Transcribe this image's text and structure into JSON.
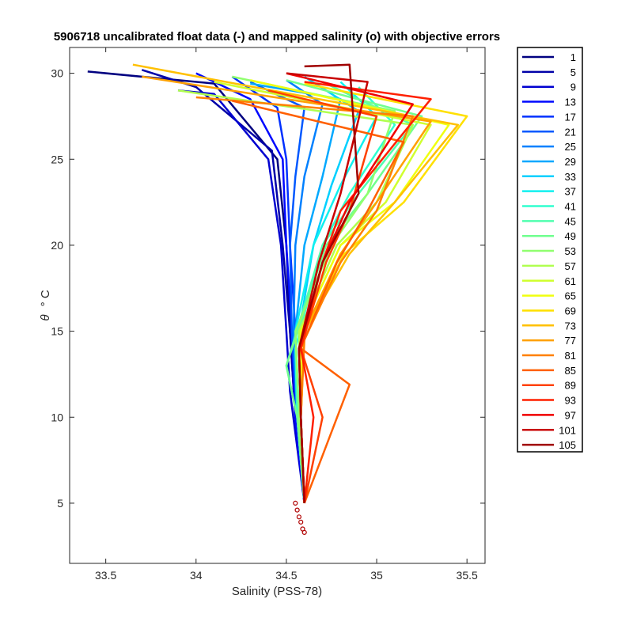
{
  "chart_data": {
    "type": "line",
    "title": "5906718 uncalibrated float data (-) and mapped salinity (o) with objective errors",
    "xlabel": "Salinity (PSS-78)",
    "ylabel_symbol": "θ",
    "ylabel_unit": "° C",
    "xlim": [
      33.3,
      35.6
    ],
    "ylim": [
      1.5,
      31.5
    ],
    "xticks": [
      33.5,
      34,
      34.5,
      35,
      35.5
    ],
    "xtick_labels": [
      "33.5",
      "34",
      "34.5",
      "35",
      "35.5"
    ],
    "yticks": [
      5,
      10,
      15,
      20,
      25,
      30
    ],
    "ytick_labels": [
      "5",
      "10",
      "15",
      "20",
      "25",
      "30"
    ],
    "grid": false,
    "legend_position": "outside-right",
    "colormap": "jet",
    "series": [
      {
        "name": "1",
        "color": "#000080",
        "x": [
          33.4,
          34.1,
          34.45,
          34.5,
          34.52,
          34.55,
          34.6
        ],
        "y": [
          30.1,
          29.4,
          25.0,
          20.0,
          15.0,
          10.0,
          5.0
        ]
      },
      {
        "name": "5",
        "color": "#0000a8",
        "x": [
          33.7,
          34.0,
          34.42,
          34.48,
          34.52,
          34.55,
          34.6
        ],
        "y": [
          30.2,
          29.2,
          25.5,
          20.0,
          15.0,
          10.0,
          5.0
        ]
      },
      {
        "name": "9",
        "color": "#0000d0",
        "x": [
          33.9,
          34.1,
          34.4,
          34.47,
          34.5,
          34.52,
          34.6
        ],
        "y": [
          29.0,
          28.8,
          25.0,
          20.0,
          15.0,
          11.5,
          5.0
        ]
      },
      {
        "name": "13",
        "color": "#0008ff",
        "x": [
          34.0,
          34.3,
          34.48,
          34.5,
          34.53,
          34.55,
          34.6
        ],
        "y": [
          30.0,
          28.5,
          25.0,
          20.0,
          15.0,
          10.0,
          5.0
        ]
      },
      {
        "name": "17",
        "color": "#0030ff",
        "x": [
          34.2,
          34.45,
          34.5,
          34.52,
          34.55,
          34.56,
          34.6
        ],
        "y": [
          29.8,
          28.0,
          25.0,
          20.0,
          15.0,
          10.0,
          5.0
        ]
      },
      {
        "name": "21",
        "color": "#0058ff",
        "x": [
          34.3,
          34.6,
          34.55,
          34.52,
          34.53,
          34.56,
          34.6
        ],
        "y": [
          29.5,
          28.0,
          24.0,
          20.0,
          15.0,
          10.0,
          5.0
        ]
      },
      {
        "name": "25",
        "color": "#0080ff",
        "x": [
          34.5,
          34.7,
          34.6,
          34.55,
          34.54,
          34.56,
          34.6
        ],
        "y": [
          29.6,
          28.2,
          24.0,
          20.0,
          15.0,
          10.0,
          5.0
        ]
      },
      {
        "name": "29",
        "color": "#00a8ff",
        "x": [
          34.3,
          34.8,
          34.7,
          34.6,
          34.55,
          34.57,
          34.6
        ],
        "y": [
          29.4,
          28.5,
          24.0,
          20.0,
          15.0,
          10.0,
          5.0
        ]
      },
      {
        "name": "33",
        "color": "#00d0ff",
        "x": [
          34.6,
          34.9,
          34.75,
          34.65,
          34.57,
          34.58,
          34.6
        ],
        "y": [
          29.8,
          27.8,
          23.5,
          20.0,
          15.0,
          10.0,
          5.0
        ]
      },
      {
        "name": "37",
        "color": "#10f0ef",
        "x": [
          34.8,
          35.0,
          34.8,
          34.65,
          34.55,
          34.57,
          34.6
        ],
        "y": [
          29.5,
          27.5,
          23.5,
          20.0,
          15.0,
          10.0,
          5.0
        ]
      },
      {
        "name": "41",
        "color": "#30ffcf",
        "x": [
          34.9,
          35.1,
          34.85,
          34.7,
          34.55,
          34.56,
          34.6
        ],
        "y": [
          29.2,
          27.0,
          23.0,
          20.0,
          14.0,
          10.0,
          5.0
        ]
      },
      {
        "name": "45",
        "color": "#50ffaf",
        "x": [
          34.7,
          35.2,
          34.9,
          34.7,
          34.5,
          34.56,
          34.6
        ],
        "y": [
          29.5,
          27.0,
          23.0,
          20.0,
          13.0,
          10.0,
          5.0
        ]
      },
      {
        "name": "49",
        "color": "#70ff8f",
        "x": [
          34.5,
          35.25,
          34.95,
          34.72,
          34.5,
          34.56,
          34.6
        ],
        "y": [
          29.6,
          27.5,
          23.0,
          20.0,
          13.0,
          10.0,
          5.0
        ]
      },
      {
        "name": "53",
        "color": "#90ff6f",
        "x": [
          34.2,
          35.1,
          34.95,
          34.75,
          34.55,
          34.57,
          34.6
        ],
        "y": [
          29.8,
          27.8,
          23.0,
          20.0,
          15.0,
          10.0,
          5.0
        ]
      },
      {
        "name": "57",
        "color": "#b0ff4f",
        "x": [
          33.9,
          35.2,
          35.0,
          34.78,
          34.57,
          34.58,
          34.6
        ],
        "y": [
          29.0,
          27.0,
          22.5,
          20.0,
          15.0,
          10.0,
          5.0
        ]
      },
      {
        "name": "61",
        "color": "#d0ff2f",
        "x": [
          34.1,
          35.3,
          35.05,
          34.8,
          34.58,
          34.58,
          34.6
        ],
        "y": [
          29.5,
          27.0,
          22.5,
          20.0,
          15.0,
          10.0,
          5.0
        ]
      },
      {
        "name": "65",
        "color": "#f0ff0f",
        "x": [
          34.3,
          35.4,
          35.1,
          34.8,
          34.58,
          34.58,
          34.6
        ],
        "y": [
          29.6,
          27.0,
          22.5,
          20.0,
          15.0,
          10.0,
          5.0
        ]
      },
      {
        "name": "69",
        "color": "#ffe000",
        "x": [
          34.6,
          35.5,
          35.15,
          34.82,
          34.6,
          34.58,
          34.6
        ],
        "y": [
          29.4,
          27.5,
          22.5,
          19.5,
          15.0,
          10.0,
          5.0
        ]
      },
      {
        "name": "73",
        "color": "#ffc000",
        "x": [
          33.65,
          35.45,
          35.1,
          34.85,
          34.6,
          34.58,
          34.6
        ],
        "y": [
          30.5,
          27.0,
          22.5,
          19.5,
          15.0,
          10.0,
          5.0
        ]
      },
      {
        "name": "77",
        "color": "#ffa000",
        "x": [
          33.7,
          35.3,
          35.0,
          34.8,
          34.6,
          34.58,
          34.6
        ],
        "y": [
          29.8,
          27.2,
          22.5,
          19.5,
          15.0,
          10.0,
          5.0
        ]
      },
      {
        "name": "81",
        "color": "#ff8000",
        "x": [
          34.0,
          35.2,
          35.0,
          34.8,
          34.6,
          34.58,
          34.6
        ],
        "y": [
          28.6,
          27.5,
          22.0,
          19.0,
          14.5,
          10.0,
          5.0
        ]
      },
      {
        "name": "85",
        "color": "#ff6000",
        "x": [
          34.2,
          35.15,
          34.95,
          34.78,
          34.58,
          34.85,
          34.6
        ],
        "y": [
          28.4,
          26.0,
          22.0,
          19.0,
          14.0,
          11.9,
          5.0
        ]
      },
      {
        "name": "89",
        "color": "#ff4000",
        "x": [
          34.4,
          35.0,
          34.85,
          34.72,
          34.58,
          34.7,
          34.6
        ],
        "y": [
          29.0,
          27.5,
          22.0,
          19.0,
          14.0,
          10.0,
          5.0
        ]
      },
      {
        "name": "93",
        "color": "#ff2000",
        "x": [
          34.6,
          35.3,
          34.8,
          34.7,
          34.58,
          34.65,
          34.6
        ],
        "y": [
          29.5,
          28.5,
          22.0,
          19.0,
          14.0,
          10.0,
          5.0
        ]
      },
      {
        "name": "97",
        "color": "#f00000",
        "x": [
          34.5,
          35.2,
          34.85,
          34.7,
          34.57,
          34.58,
          34.6
        ],
        "y": [
          30.0,
          28.2,
          22.5,
          19.0,
          14.0,
          10.0,
          5.0
        ]
      },
      {
        "name": "101",
        "color": "#c80000",
        "x": [
          34.5,
          34.95,
          34.8,
          34.68,
          34.57,
          34.58,
          34.6
        ],
        "y": [
          30.0,
          29.5,
          23.0,
          19.0,
          14.0,
          10.0,
          5.0
        ]
      },
      {
        "name": "105",
        "color": "#a00000",
        "x": [
          34.6,
          34.85,
          34.9,
          34.7,
          34.57,
          34.58,
          34.6
        ],
        "y": [
          30.4,
          30.5,
          23.0,
          19.0,
          14.0,
          10.0,
          5.0
        ]
      }
    ],
    "mapped_points": {
      "marker": "o",
      "x": [
        34.55,
        34.56,
        34.57,
        34.58,
        34.59,
        34.6
      ],
      "y": [
        5.0,
        4.6,
        4.2,
        3.9,
        3.5,
        3.3
      ]
    }
  }
}
